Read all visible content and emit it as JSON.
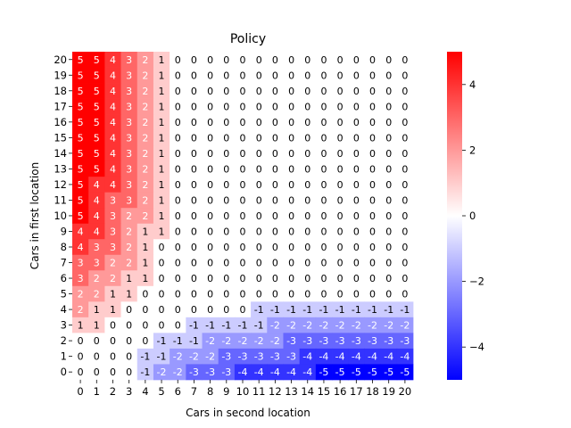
{
  "chart_data": {
    "type": "heatmap",
    "title": "Policy",
    "xlabel": "Cars in second location",
    "ylabel": "Cars in first location",
    "x": [
      0,
      1,
      2,
      3,
      4,
      5,
      6,
      7,
      8,
      9,
      10,
      11,
      12,
      13,
      14,
      15,
      16,
      17,
      18,
      19,
      20
    ],
    "y": [
      0,
      1,
      2,
      3,
      4,
      5,
      6,
      7,
      8,
      9,
      10,
      11,
      12,
      13,
      14,
      15,
      16,
      17,
      18,
      19,
      20
    ],
    "y_order": "descending (20 at top)",
    "colormap": "bwr",
    "vmin": -5,
    "vmax": 5,
    "colorbar_ticks": [
      4,
      2,
      0,
      -2,
      -4
    ],
    "annotated": true,
    "values_by_row_y": {
      "20": [
        5,
        5,
        4,
        3,
        2,
        1,
        0,
        0,
        0,
        0,
        0,
        0,
        0,
        0,
        0,
        0,
        0,
        0,
        0,
        0,
        0
      ],
      "19": [
        5,
        5,
        4,
        3,
        2,
        1,
        0,
        0,
        0,
        0,
        0,
        0,
        0,
        0,
        0,
        0,
        0,
        0,
        0,
        0,
        0
      ],
      "18": [
        5,
        5,
        4,
        3,
        2,
        1,
        0,
        0,
        0,
        0,
        0,
        0,
        0,
        0,
        0,
        0,
        0,
        0,
        0,
        0,
        0
      ],
      "17": [
        5,
        5,
        4,
        3,
        2,
        1,
        0,
        0,
        0,
        0,
        0,
        0,
        0,
        0,
        0,
        0,
        0,
        0,
        0,
        0,
        0
      ],
      "16": [
        5,
        5,
        4,
        3,
        2,
        1,
        0,
        0,
        0,
        0,
        0,
        0,
        0,
        0,
        0,
        0,
        0,
        0,
        0,
        0,
        0
      ],
      "15": [
        5,
        5,
        4,
        3,
        2,
        1,
        0,
        0,
        0,
        0,
        0,
        0,
        0,
        0,
        0,
        0,
        0,
        0,
        0,
        0,
        0
      ],
      "14": [
        5,
        5,
        4,
        3,
        2,
        1,
        0,
        0,
        0,
        0,
        0,
        0,
        0,
        0,
        0,
        0,
        0,
        0,
        0,
        0,
        0
      ],
      "13": [
        5,
        5,
        4,
        3,
        2,
        1,
        0,
        0,
        0,
        0,
        0,
        0,
        0,
        0,
        0,
        0,
        0,
        0,
        0,
        0,
        0
      ],
      "12": [
        5,
        4,
        4,
        3,
        2,
        1,
        0,
        0,
        0,
        0,
        0,
        0,
        0,
        0,
        0,
        0,
        0,
        0,
        0,
        0,
        0
      ],
      "11": [
        5,
        4,
        3,
        3,
        2,
        1,
        0,
        0,
        0,
        0,
        0,
        0,
        0,
        0,
        0,
        0,
        0,
        0,
        0,
        0,
        0
      ],
      "10": [
        5,
        4,
        3,
        2,
        2,
        1,
        0,
        0,
        0,
        0,
        0,
        0,
        0,
        0,
        0,
        0,
        0,
        0,
        0,
        0,
        0
      ],
      "9": [
        4,
        4,
        3,
        2,
        1,
        1,
        0,
        0,
        0,
        0,
        0,
        0,
        0,
        0,
        0,
        0,
        0,
        0,
        0,
        0,
        0
      ],
      "8": [
        4,
        3,
        3,
        2,
        1,
        0,
        0,
        0,
        0,
        0,
        0,
        0,
        0,
        0,
        0,
        0,
        0,
        0,
        0,
        0,
        0
      ],
      "7": [
        3,
        3,
        2,
        2,
        1,
        0,
        0,
        0,
        0,
        0,
        0,
        0,
        0,
        0,
        0,
        0,
        0,
        0,
        0,
        0,
        0
      ],
      "6": [
        3,
        2,
        2,
        1,
        1,
        0,
        0,
        0,
        0,
        0,
        0,
        0,
        0,
        0,
        0,
        0,
        0,
        0,
        0,
        0,
        0
      ],
      "5": [
        2,
        2,
        1,
        1,
        0,
        0,
        0,
        0,
        0,
        0,
        0,
        0,
        0,
        0,
        0,
        0,
        0,
        0,
        0,
        0,
        0
      ],
      "4": [
        2,
        1,
        1,
        0,
        0,
        0,
        0,
        0,
        0,
        0,
        0,
        -1,
        -1,
        -1,
        -1,
        -1,
        -1,
        -1,
        -1,
        -1,
        -1
      ],
      "3": [
        1,
        1,
        0,
        0,
        0,
        0,
        0,
        -1,
        -1,
        -1,
        -1,
        -1,
        -2,
        -2,
        -2,
        -2,
        -2,
        -2,
        -2,
        -2,
        -2
      ],
      "2": [
        0,
        0,
        0,
        0,
        0,
        -1,
        -1,
        -1,
        -2,
        -2,
        -2,
        -2,
        -2,
        -3,
        -3,
        -3,
        -3,
        -3,
        -3,
        -3,
        -3
      ],
      "1": [
        0,
        0,
        0,
        0,
        -1,
        -1,
        -2,
        -2,
        -2,
        -3,
        -3,
        -3,
        -3,
        -3,
        -4,
        -4,
        -4,
        -4,
        -4,
        -4,
        -4
      ],
      "0": [
        0,
        0,
        0,
        0,
        -1,
        -2,
        -2,
        -3,
        -3,
        -3,
        -4,
        -4,
        -4,
        -4,
        -4,
        -5,
        -5,
        -5,
        -5,
        -5,
        -5
      ]
    }
  }
}
